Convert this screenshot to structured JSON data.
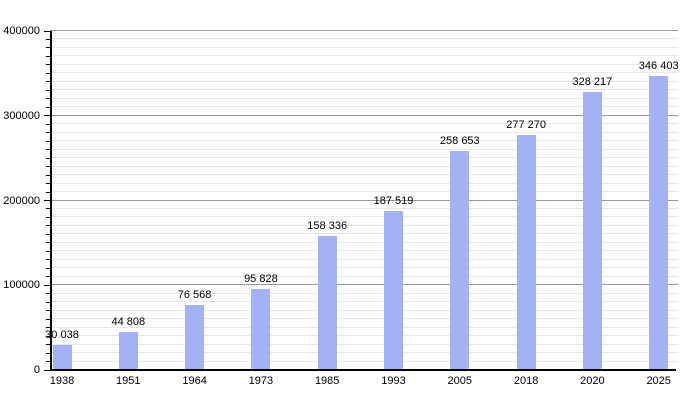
{
  "chart_data": {
    "type": "bar",
    "title": "",
    "xlabel": "",
    "ylabel": "",
    "categories": [
      "1938",
      "1951",
      "1964",
      "1973",
      "1985",
      "1993",
      "2005",
      "2018",
      "2020",
      "2025"
    ],
    "values": [
      30038,
      44808,
      76568,
      95828,
      158336,
      187519,
      258653,
      277270,
      328217,
      346403
    ],
    "value_labels": [
      "30 038",
      "44 808",
      "76 568",
      "95 828",
      "158 336",
      "187 519",
      "258 653",
      "277 270",
      "328 217",
      "346 403"
    ],
    "ylim": [
      0,
      400000
    ],
    "yticks": [
      0,
      100000,
      200000,
      300000,
      400000
    ],
    "ytick_labels": [
      "0",
      "100000",
      "200000",
      "300000",
      "400000"
    ],
    "ytick_step": 100000,
    "minor_grid_step": 10000,
    "grid": true,
    "legend": false
  },
  "colors": {
    "bar": "#a3b2f5",
    "axis": "#000000",
    "major_grid": "#9a9a9a",
    "minor_grid": "#e8e8e8",
    "label": "#000000",
    "background": "#ffffff"
  }
}
